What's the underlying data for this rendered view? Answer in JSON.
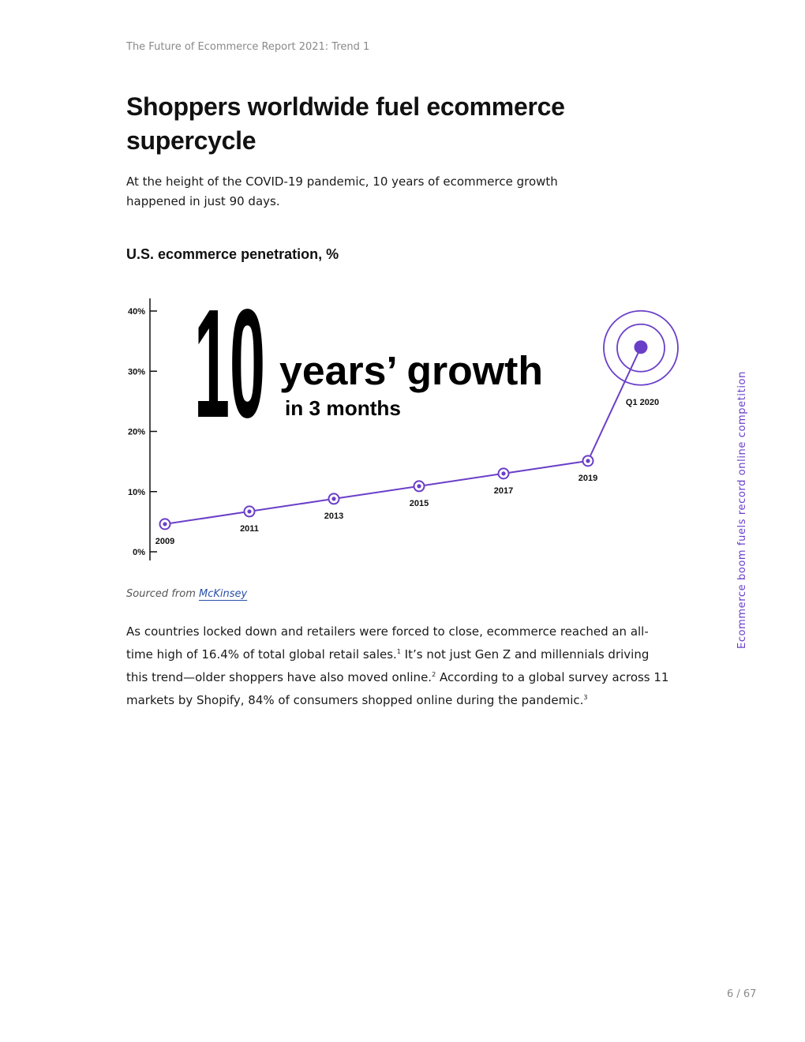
{
  "header": {
    "running_title": "The Future of Ecommerce Report 2021: Trend 1"
  },
  "title": "Shoppers worldwide fuel ecommerce supercycle",
  "intro": "At the height of the COVID-19 pandemic, 10 years of ecommerce growth happened in just 90 days.",
  "chart_data": {
    "type": "line",
    "title": "U.S. ecommerce penetration, %",
    "x": [
      "2009",
      "2011",
      "2013",
      "2015",
      "2017",
      "2019",
      "Q1 2020"
    ],
    "values": [
      4.6,
      6.7,
      8.8,
      10.9,
      13.0,
      15.1,
      34.0
    ],
    "yticks": [
      "0%",
      "10%",
      "20%",
      "30%",
      "40%"
    ],
    "ylim": [
      0,
      40
    ],
    "annotation_big": "10",
    "annotation_line1": "years’ growth",
    "annotation_line2": "in 3 months",
    "color": "#6a3fc8"
  },
  "source": {
    "prefix": "Sourced from",
    "link_text": "McKinsey"
  },
  "body": {
    "p1": "As countries locked down and retailers were forced to close, ecommerce reached an all-time high of 16.4% of total global retail sales.",
    "ref1": "1",
    "p2": " It’s not just Gen Z and millennials driving this trend—older shoppers have also moved online.",
    "ref2": "2",
    "p3": " According to a global survey across 11 markets by Shopify, 84% of consumers shopped online during the pandemic.",
    "ref3": "3"
  },
  "side_label": "Ecommerce boom fuels record online competition",
  "page_number": "6 / 67"
}
